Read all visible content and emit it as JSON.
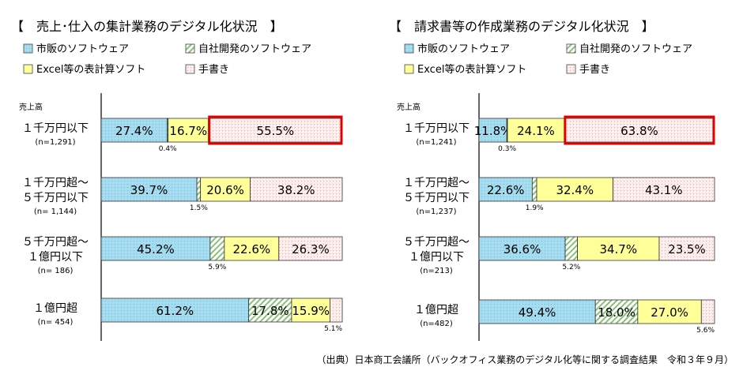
{
  "source_note": "（出典）日本商工会議所（バックオフィス業務のデジタル化等に関する調査結果　令和３年９月）",
  "colors": {
    "commercial": "#a6dcef",
    "inhouse": "#cfe6c4",
    "excel": "#ffff99",
    "handwritten": "#fbe3e3",
    "highlight": "#e00000",
    "axis": "#000000"
  },
  "legend": [
    {
      "key": "commercial",
      "label": "市販のソフトウェア"
    },
    {
      "key": "inhouse",
      "label": "自社開発のソフトウェア"
    },
    {
      "key": "excel",
      "label": "Excel等の表計算ソフト"
    },
    {
      "key": "handwritten",
      "label": "手書き"
    }
  ],
  "chart_data": [
    {
      "type": "bar",
      "orientation": "horizontal",
      "stacked": true,
      "title": "【　売上･仕入の集計業務のデジタル化状況　】",
      "y_group_label": "売上高",
      "xlim": [
        0,
        100
      ],
      "categories": [
        {
          "label": [
            "１千万円以下"
          ],
          "n": "(n=1,291)"
        },
        {
          "label": [
            "１千万円超～",
            "５千万円以下"
          ],
          "n": "(n= 1,144)"
        },
        {
          "label": [
            "５千万円超～",
            "１億円以下"
          ],
          "n": "(n= 186)"
        },
        {
          "label": [
            "１億円超"
          ],
          "n": "(n= 454)"
        }
      ],
      "series": [
        {
          "name": "市販のソフトウェア",
          "key": "commercial",
          "values": [
            27.4,
            39.7,
            45.2,
            61.2
          ],
          "labels": [
            "27.4%",
            "39.7%",
            "45.2%",
            "61.2%"
          ],
          "label_inside": [
            true,
            true,
            true,
            true
          ]
        },
        {
          "name": "自社開発のソフトウェア",
          "key": "inhouse",
          "values": [
            0.4,
            1.5,
            5.9,
            17.8
          ],
          "labels": [
            "0.4%",
            "1.5%",
            "5.9%",
            "17.8%"
          ],
          "label_inside": [
            false,
            false,
            false,
            true
          ]
        },
        {
          "name": "Excel等の表計算ソフト",
          "key": "excel",
          "values": [
            16.7,
            20.6,
            22.6,
            15.9
          ],
          "labels": [
            "16.7%",
            "20.6%",
            "22.6%",
            "15.9%"
          ],
          "label_inside": [
            true,
            true,
            true,
            true
          ]
        },
        {
          "name": "手書き",
          "key": "handwritten",
          "values": [
            55.5,
            38.2,
            26.3,
            5.1
          ],
          "labels": [
            "55.5%",
            "38.2%",
            "26.3%",
            "5.1%"
          ],
          "label_inside": [
            true,
            true,
            true,
            false
          ]
        }
      ],
      "highlight": {
        "category_index": 0,
        "series_key": "handwritten"
      }
    },
    {
      "type": "bar",
      "orientation": "horizontal",
      "stacked": true,
      "title": "【　請求書等の作成業務のデジタル化状況　】",
      "y_group_label": "売上高",
      "xlim": [
        0,
        100
      ],
      "categories": [
        {
          "label": [
            "１千万円以下"
          ],
          "n": "(n=1,241)"
        },
        {
          "label": [
            "１千万円超～",
            "５千万円以下"
          ],
          "n": "(n=1,237)"
        },
        {
          "label": [
            "５千万円超～",
            "１億円以下"
          ],
          "n": "(n=213)"
        },
        {
          "label": [
            "１億円超"
          ],
          "n": "(n=482)"
        }
      ],
      "series": [
        {
          "name": "市販のソフトウェア",
          "key": "commercial",
          "values": [
            11.8,
            22.6,
            36.6,
            49.4
          ],
          "labels": [
            "11.8%",
            "22.6%",
            "36.6%",
            "49.4%"
          ],
          "label_inside": [
            true,
            true,
            true,
            true
          ]
        },
        {
          "name": "自社開発のソフトウェア",
          "key": "inhouse",
          "values": [
            0.3,
            1.9,
            5.2,
            18.0
          ],
          "labels": [
            "0.3%",
            "1.9%",
            "5.2%",
            "18.0%"
          ],
          "label_inside": [
            false,
            false,
            false,
            true
          ]
        },
        {
          "name": "Excel等の表計算ソフト",
          "key": "excel",
          "values": [
            24.1,
            32.4,
            34.7,
            27.0
          ],
          "labels": [
            "24.1%",
            "32.4%",
            "34.7%",
            "27.0%"
          ],
          "label_inside": [
            true,
            true,
            true,
            true
          ]
        },
        {
          "name": "手書き",
          "key": "handwritten",
          "values": [
            63.8,
            43.1,
            23.5,
            5.6
          ],
          "labels": [
            "63.8%",
            "43.1%",
            "23.5%",
            "5.6%"
          ],
          "label_inside": [
            true,
            true,
            true,
            false
          ]
        }
      ],
      "highlight": {
        "category_index": 0,
        "series_key": "handwritten"
      }
    }
  ]
}
